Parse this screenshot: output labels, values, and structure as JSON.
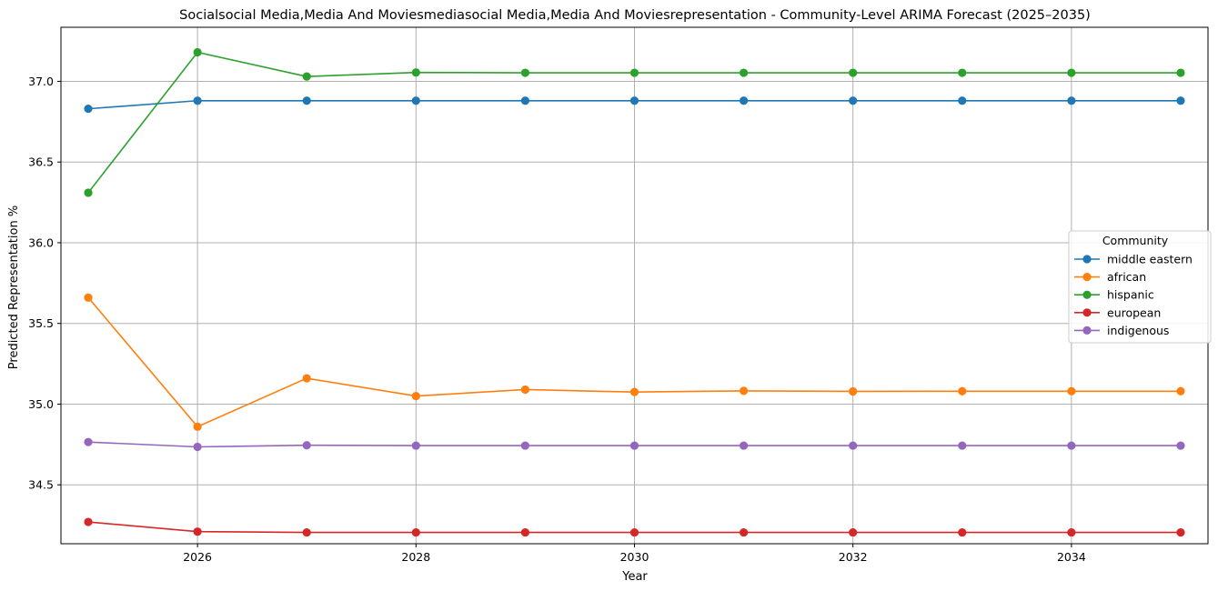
{
  "chart_data": {
    "type": "line",
    "title": "Socialsocial Media,Media And Moviesmediasocial Media,Media And Moviesrepresentation - Community-Level ARIMA Forecast (2025–2035)",
    "xlabel": "Year",
    "ylabel": "Predicted Representation %",
    "x": [
      2025,
      2026,
      2027,
      2028,
      2029,
      2030,
      2031,
      2032,
      2033,
      2034,
      2035
    ],
    "xlim": [
      2024.75,
      2035.25
    ],
    "ylim": [
      34.135,
      37.335
    ],
    "xticks": [
      2026,
      2028,
      2030,
      2032,
      2034
    ],
    "xtick_labels": [
      "2026",
      "2028",
      "2030",
      "2032",
      "2034"
    ],
    "yticks": [
      34.5,
      35.0,
      35.5,
      36.0,
      36.5,
      37.0
    ],
    "ytick_labels": [
      "34.5",
      "35.0",
      "35.5",
      "36.0",
      "36.5",
      "37.0"
    ],
    "grid": true,
    "legend_title": "Community",
    "legend_position": "center-right",
    "series": [
      {
        "name": "middle eastern",
        "color": "#1f77b4",
        "values": [
          36.83,
          36.88,
          36.88,
          36.88,
          36.88,
          36.88,
          36.88,
          36.88,
          36.88,
          36.88,
          36.88
        ]
      },
      {
        "name": "african",
        "color": "#ff7f0e",
        "values": [
          35.66,
          34.86,
          35.16,
          35.05,
          35.09,
          35.075,
          35.082,
          35.079,
          35.08,
          35.08,
          35.08
        ]
      },
      {
        "name": "hispanic",
        "color": "#2ca02c",
        "values": [
          36.31,
          37.18,
          37.03,
          37.055,
          37.053,
          37.053,
          37.053,
          37.053,
          37.053,
          37.053,
          37.053
        ]
      },
      {
        "name": "european",
        "color": "#d62728",
        "values": [
          34.27,
          34.21,
          34.205,
          34.205,
          34.205,
          34.205,
          34.205,
          34.205,
          34.205,
          34.205,
          34.205
        ]
      },
      {
        "name": "indigenous",
        "color": "#9467bd",
        "values": [
          34.765,
          34.735,
          34.745,
          34.743,
          34.743,
          34.743,
          34.743,
          34.743,
          34.743,
          34.743,
          34.743
        ]
      }
    ]
  }
}
